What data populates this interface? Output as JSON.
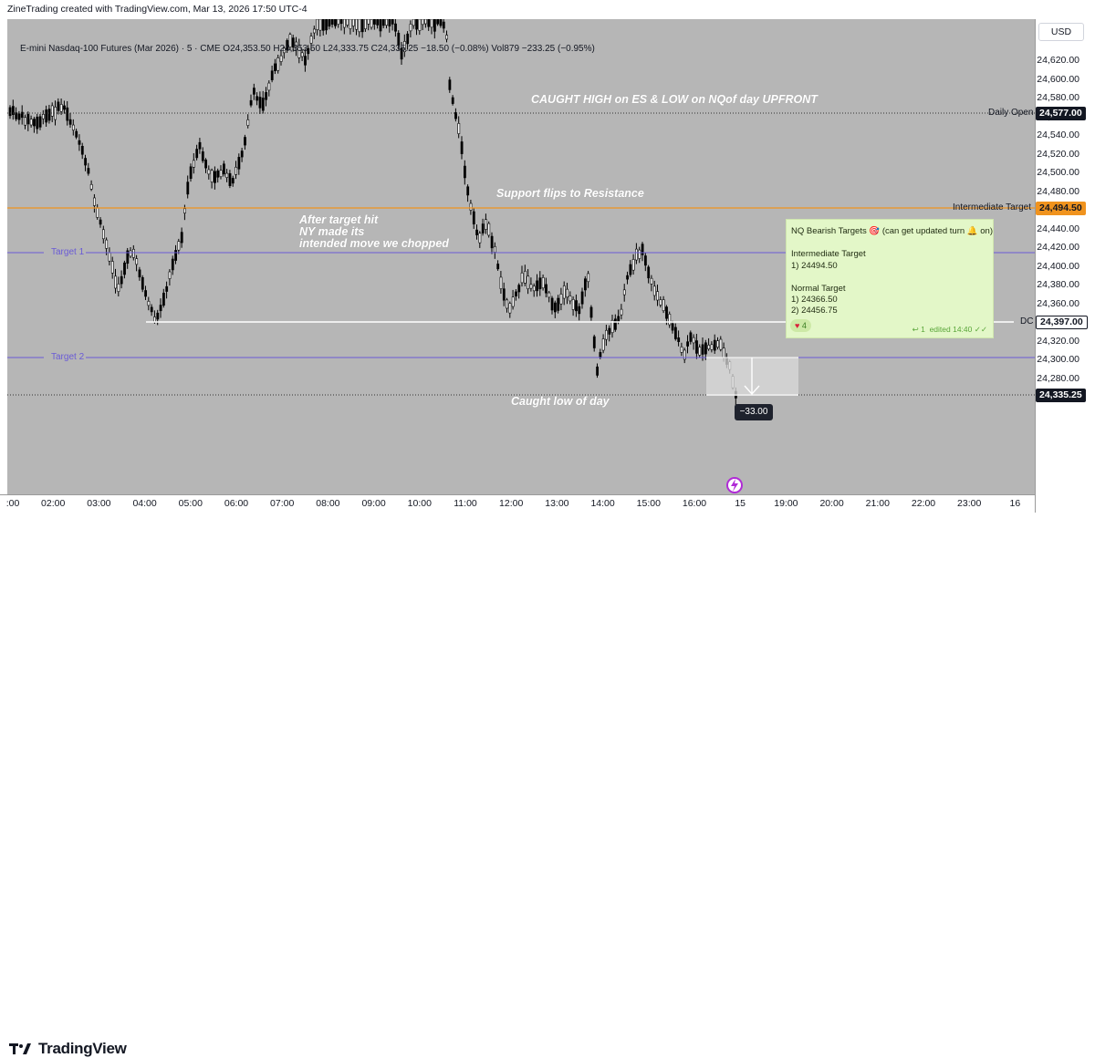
{
  "header": {
    "attribution": "ZineTrading created with TradingView.com, Mar 13, 2026 17:50 UTC-4"
  },
  "symbol_info": "E-mini Nasdaq-100 Futures (Mar 2026) · 5 · CME  O24,353.50  H24,353.50  L24,333.75  C24,335.25  −18.50 (−0.08%)  Vol879  −233.25 (−0.95%)",
  "currency_button": "USD",
  "price_ticks": [
    "24,620.00",
    "24,600.00",
    "24,580.00",
    "24,560.00",
    "24,540.00",
    "24,520.00",
    "24,500.00",
    "24,480.00",
    "24,460.00",
    "24,440.00",
    "24,420.00",
    "24,400.00",
    "24,380.00",
    "24,360.00",
    "24,340.00",
    "24,320.00",
    "24,300.00",
    "24,280.00",
    "24,260.00"
  ],
  "time_ticks": [
    ":00",
    "02:00",
    "03:00",
    "04:00",
    "05:00",
    "06:00",
    "07:00",
    "08:00",
    "09:00",
    "10:00",
    "11:00",
    "12:00",
    "13:00",
    "14:00",
    "15:00",
    "16:00",
    "15",
    "19:00",
    "20:00",
    "21:00",
    "22:00",
    "23:00",
    "16"
  ],
  "levels": {
    "daily_open": {
      "name": "Daily Open",
      "price": "24,577.00",
      "color": "#131722"
    },
    "intermediate_target": {
      "name": "Intermediate Target",
      "price": "24,494.50",
      "color": "#f0931e"
    },
    "target1": {
      "name": "Target 1",
      "color": "#6a5bd6"
    },
    "target2": {
      "name": "Target 2",
      "color": "#6a5bd6"
    },
    "dc": {
      "name": "DC",
      "price": "24,397.00",
      "color": "#ffffff"
    },
    "current": {
      "price": "24,335.25"
    }
  },
  "annotations": {
    "caught_high": "CAUGHT HIGH on ES & LOW on NQof day UPFRONT",
    "support_flip": "Support flips to Resistance",
    "after_target_1": "After target hit",
    "after_target_2": "NY made its",
    "after_target_3": "intended move we chopped",
    "caught_low": "Caught low of day"
  },
  "measure_badge": "−33.00",
  "message_card": {
    "title": "NQ Bearish Targets 🎯 (can get updated turn 🔔 on)",
    "line1": "Intermediate Target",
    "line2": "1) 24494.50",
    "line3": "Normal Target",
    "line4": "1) 24366.50",
    "line5": "2) 24456.75",
    "reaction_count": "4",
    "reply_count": "1",
    "edited": "edited 14:40"
  },
  "footer": {
    "brand": "TradingView"
  },
  "colors": {
    "chart_bg": "#b6b6b6",
    "candle": "#000000",
    "accent_orange": "#f0931e",
    "target_purple": "#6a5bd6"
  }
}
